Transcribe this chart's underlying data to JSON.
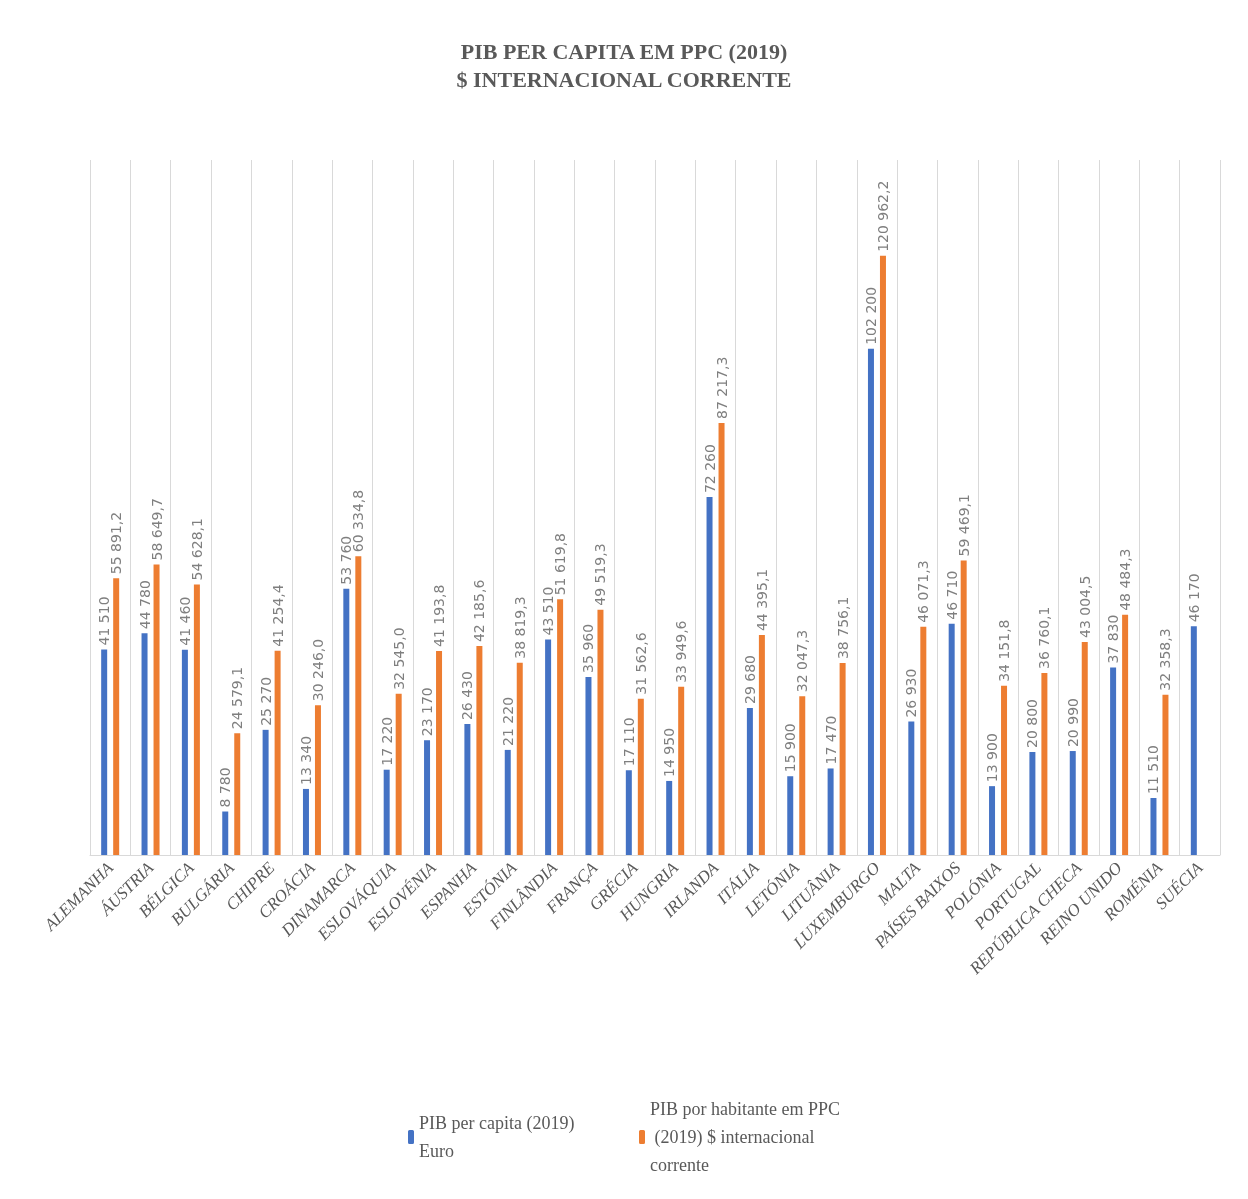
{
  "chart_data": {
    "type": "bar",
    "title": "PIB PER CAPITA EM PPC (2019)",
    "subtitle": "$ INTERNACIONAL CORRENTE",
    "categories": [
      "ALEMANHA",
      "ÁUSTRIA",
      "BÉLGICA",
      "BULGÁRIA",
      "CHIPRE",
      "CROÁCIA",
      "DINAMARCA",
      "ESLOVÁQUIA",
      "ESLOVÉNIA",
      "ESPANHA",
      "ESTÓNIA",
      "FINLÂNDIA",
      "FRANÇA",
      "GRÉCIA",
      "HUNGRIA",
      "IRLANDA",
      "ITÁLIA",
      "LETÓNIA",
      "LITUÂNIA",
      "LUXEMBURGO",
      "MALTA",
      "PAÍSES BAIXOS",
      "POLÓNIA",
      "PORTUGAL",
      "REPÚBLICA CHECA",
      "REINO UNIDO",
      "ROMÉNIA",
      "SUÉCIA"
    ],
    "series": [
      {
        "name": "PIB per capita (2019) Euro",
        "color": "#4472c4",
        "values": [
          41510,
          44780,
          41460,
          8780,
          25270,
          13340,
          53760,
          17220,
          23170,
          26430,
          21220,
          43510,
          35960,
          17110,
          14950,
          72260,
          29680,
          15900,
          17470,
          102200,
          26930,
          46710,
          13900,
          20800,
          20990,
          37830,
          11510,
          46170
        ],
        "value_labels": [
          "41 510",
          "44 780",
          "41 460",
          "8 780",
          "25 270",
          "13 340",
          "53 760",
          "17 220",
          "23 170",
          "26 430",
          "21 220",
          "43 510",
          "35 960",
          "17 110",
          "14 950",
          "72 260",
          "29 680",
          "15 900",
          "17 470",
          "102 200",
          "26 930",
          "46 710",
          "13 900",
          "20 800",
          "20 990",
          "37 830",
          "11 510",
          "46 170"
        ]
      },
      {
        "name": "PIB por habitante em PPC (2019) $ internacional corrente",
        "color": "#ed7d31",
        "values": [
          55891.2,
          58649.7,
          54628.1,
          24579.1,
          41254.4,
          30246.0,
          60334.8,
          32545.0,
          41193.8,
          42185.6,
          38819.3,
          51619.8,
          49519.3,
          31562.6,
          33949.6,
          87217.3,
          44395.1,
          32047.3,
          38756.1,
          120962.2,
          46071.3,
          59469.1,
          34151.8,
          36760.1,
          43004.5,
          48484.3,
          32358.3,
          null
        ],
        "value_labels": [
          "55 891,2",
          "58 649,7",
          "54 628,1",
          "24 579,1",
          "41 254,4",
          "30 246,0",
          "60 334,8",
          "32 545,0",
          "41 193,8",
          "42 185,6",
          "38 819,3",
          "51 619,8",
          "49 519,3",
          "31 562,6",
          "33 949,6",
          "87 217,3",
          "44 395,1",
          "32 047,3",
          "38 756,1",
          "120 962,2",
          "46 071,3",
          "59 469,1",
          "34 151,8",
          "36 760,1",
          "43 004,5",
          "48 484,3",
          "32 358,3",
          null
        ]
      }
    ],
    "grid": "x",
    "legend": "bottom"
  }
}
